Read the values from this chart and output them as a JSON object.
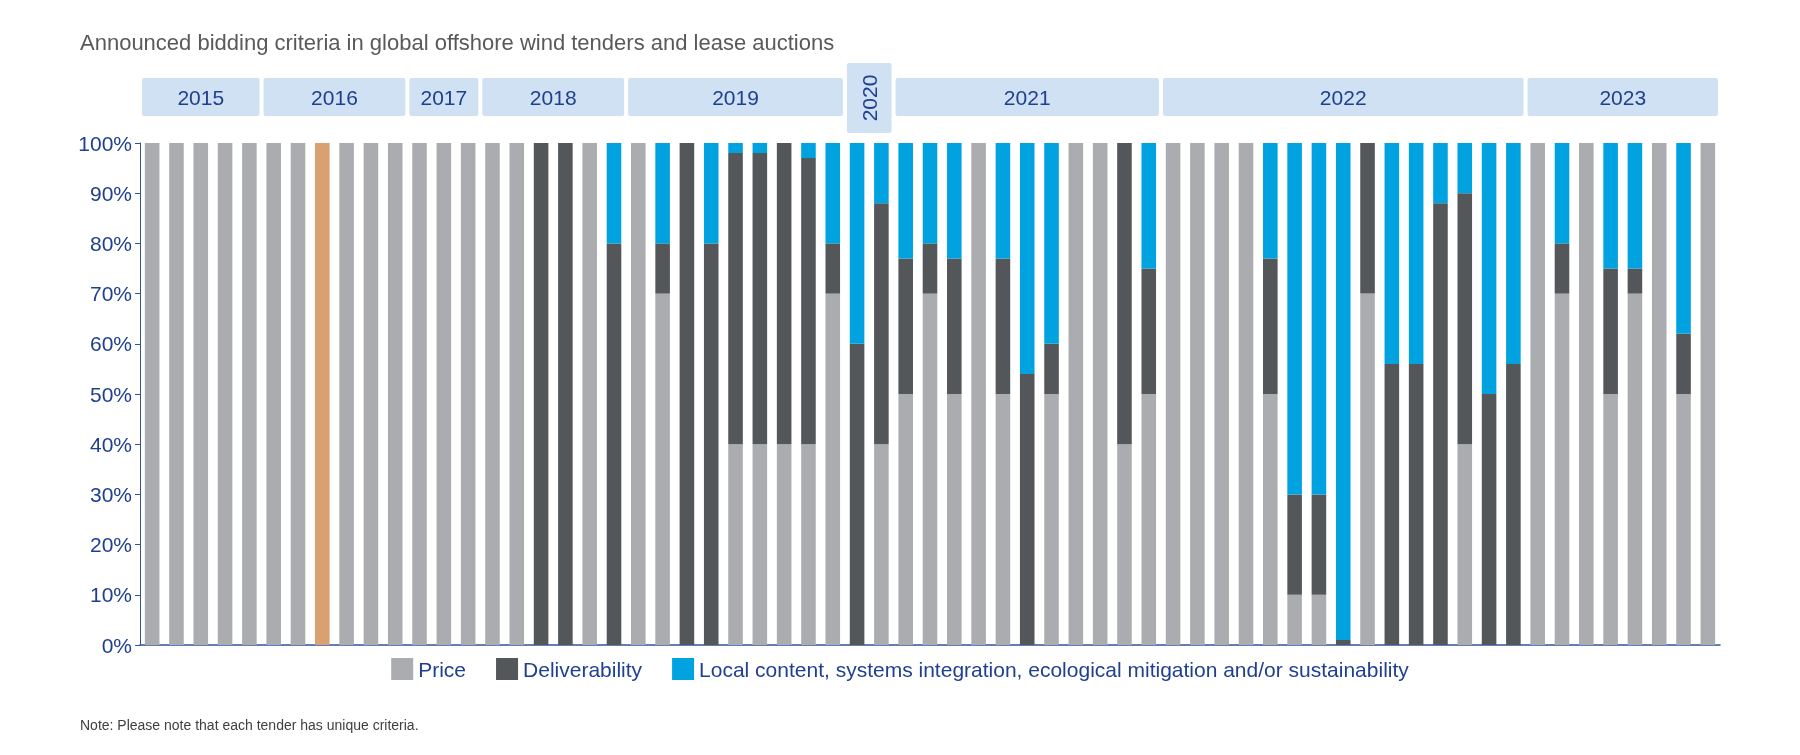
{
  "chart_data": {
    "type": "bar",
    "stacked": true,
    "title": "Announced bidding criteria in global offshore wind tenders and lease auctions",
    "categories": [
      null,
      null,
      null,
      null,
      null,
      null,
      null,
      null,
      null,
      null,
      null,
      null,
      null,
      null,
      null,
      null,
      null,
      null,
      null,
      null,
      null,
      null,
      null,
      null,
      null,
      null,
      null,
      null,
      null,
      null,
      null,
      null,
      null,
      null,
      null,
      null,
      null,
      null,
      null,
      null,
      null,
      null,
      null,
      null,
      null,
      null,
      null,
      null,
      null,
      null,
      null,
      null,
      null,
      null,
      null,
      null,
      null,
      null,
      null,
      null,
      null,
      null,
      null,
      null,
      null
    ],
    "series": [
      {
        "name": "Price",
        "color": "#abacb0",
        "colors": [
          "#abacb0",
          "#abacb0",
          "#abacb0",
          "#abacb0",
          "#abacb0",
          "#abacb0",
          "#abacb0",
          "#d9a072",
          "#abacb0",
          "#abacb0",
          "#abacb0",
          "#abacb0",
          "#abacb0",
          "#abacb0",
          "#abacb0",
          "#abacb0",
          "#abacb0",
          "#abacb0",
          "#abacb0",
          "#abacb0",
          "#abacb0",
          "#abacb0",
          "#abacb0",
          "#abacb0",
          "#abacb0",
          "#abacb0",
          "#abacb0",
          "#abacb0",
          "#abacb0",
          "#abacb0",
          "#abacb0",
          "#abacb0",
          "#abacb0",
          "#abacb0",
          "#abacb0",
          "#abacb0",
          "#abacb0",
          "#abacb0",
          "#abacb0",
          "#abacb0",
          "#abacb0",
          "#abacb0",
          "#abacb0",
          "#abacb0",
          "#abacb0",
          "#abacb0",
          "#abacb0",
          "#abacb0",
          "#abacb0",
          "#abacb0",
          "#abacb0",
          "#abacb0",
          "#abacb0",
          "#abacb0",
          "#abacb0",
          "#abacb0",
          "#abacb0",
          "#abacb0",
          "#abacb0",
          "#abacb0",
          "#abacb0",
          "#abacb0",
          "#abacb0",
          "#abacb0",
          "#abacb0"
        ],
        "values": [
          100,
          100,
          100,
          100,
          100,
          100,
          100,
          100,
          100,
          100,
          100,
          100,
          100,
          100,
          100,
          100,
          0,
          0,
          100,
          0,
          100,
          70,
          0,
          0,
          40,
          40,
          40,
          40,
          70,
          0,
          40,
          50,
          70,
          50,
          100,
          50,
          0,
          50,
          100,
          100,
          40,
          50,
          100,
          100,
          100,
          100,
          50,
          10,
          10,
          0,
          70,
          0,
          0,
          0,
          40,
          0,
          0,
          100,
          70,
          100,
          50,
          70,
          100,
          50,
          100
        ]
      },
      {
        "name": "Deliverability",
        "color": "#53575a",
        "values": [
          0,
          0,
          0,
          0,
          0,
          0,
          0,
          0,
          0,
          0,
          0,
          0,
          0,
          0,
          0,
          0,
          100,
          100,
          0,
          80,
          0,
          10,
          100,
          80,
          58,
          58,
          60,
          57,
          10,
          60,
          48,
          27,
          10,
          27,
          0,
          27,
          54,
          10,
          0,
          0,
          60,
          25,
          0,
          0,
          0,
          0,
          27,
          20,
          20,
          1,
          30,
          56,
          56,
          88,
          50,
          50,
          56,
          0,
          10,
          0,
          25,
          5,
          0,
          12,
          0
        ]
      },
      {
        "name": "Local content, systems integration, ecological mitigation and/or sustainability",
        "color": "#00a3e0",
        "values": [
          0,
          0,
          0,
          0,
          0,
          0,
          0,
          0,
          0,
          0,
          0,
          0,
          0,
          0,
          0,
          0,
          0,
          0,
          0,
          20,
          0,
          20,
          0,
          20,
          2,
          2,
          0,
          3,
          20,
          40,
          12,
          23,
          20,
          23,
          0,
          23,
          46,
          40,
          0,
          0,
          0,
          25,
          0,
          0,
          0,
          0,
          23,
          70,
          70,
          99,
          0,
          44,
          44,
          12,
          10,
          50,
          44,
          0,
          20,
          0,
          25,
          25,
          0,
          38,
          0
        ]
      }
    ],
    "ylim": [
      0,
      100
    ],
    "yticks": [
      {
        "value": 0,
        "label": "0%"
      },
      {
        "value": 10,
        "label": "10%"
      },
      {
        "value": 20,
        "label": "20%"
      },
      {
        "value": 30,
        "label": "30%"
      },
      {
        "value": 40,
        "label": "40%"
      },
      {
        "value": 50,
        "label": "50%"
      },
      {
        "value": 60,
        "label": "60%"
      },
      {
        "value": 70,
        "label": "70%"
      },
      {
        "value": 80,
        "label": "80%"
      },
      {
        "value": 90,
        "label": "90%"
      },
      {
        "value": 100,
        "label": "100%"
      }
    ],
    "legend": "bottom",
    "grid": false,
    "annotations": [
      "2015",
      "2016",
      "2017",
      "2018",
      "2019",
      "2020",
      "2021",
      "2022",
      "2023",
      "Note: Please note that each tender has unique criteria."
    ]
  }
}
